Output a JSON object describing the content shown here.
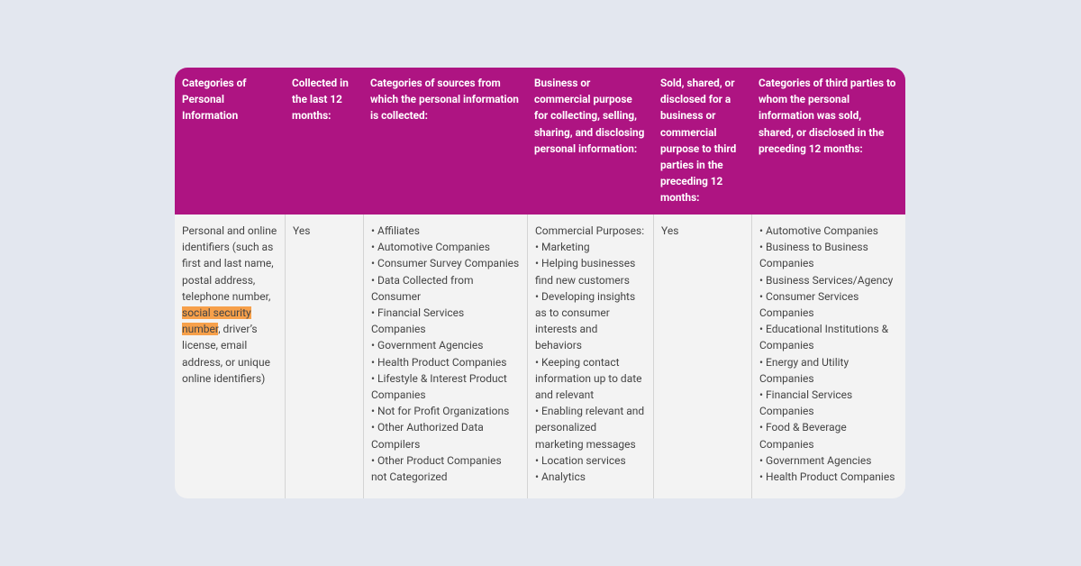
{
  "table": {
    "headers": [
      "Categories of Personal Information",
      "Collected in the last 12 months:",
      "Categories of sources from which the personal information is collected:",
      "Business or commercial purpose for collecting, selling, sharing, and disclosing personal information:",
      "Sold, shared, or disclosed for a business or commercial purpose to third parties in the preceding 12 months:",
      "Categories of third parties to whom the personal information was sold, shared, or disclosed in the preceding 12 months:"
    ],
    "rows": [
      {
        "category": {
          "parts": [
            "Personal and online identifiers (such as first and last name, postal address, telephone number, ",
            "social security number",
            ", driver’s license, email address, or unique online identifiers)"
          ]
        },
        "collected": "Yes",
        "sources": [
          "• Affiliates",
          "• Automotive Companies",
          "• Consumer Survey Companies",
          "• Data Collected from Consumer",
          "• Financial Services Companies",
          "• Government Agencies",
          "• Health Product Companies",
          "• Lifestyle & Interest Product Companies",
          "• Not for Profit Organizations",
          "• Other Authorized Data Compilers",
          "• Other Product Companies not Categorized"
        ],
        "purpose": {
          "intro": "Commercial Purposes:",
          "items": [
            "• Marketing",
            "• Helping businesses find new customers",
            "• Developing insights as to consumer interests and behaviors",
            "• Keeping contact information up to date and relevant",
            "• Enabling relevant and personalized marketing messages",
            "• Location services",
            "• Analytics"
          ]
        },
        "sold": "Yes",
        "third_parties": [
          "• Automotive Companies",
          "• Business to Business Companies",
          "• Business Services/Agency",
          "• Consumer Services Companies",
          "• Educational Institutions & Companies",
          "• Energy and Utility Companies",
          "• Financial Services Companies",
          "• Food & Beverage Companies",
          "• Government Agencies",
          "• Health Product Companies"
        ]
      }
    ]
  }
}
